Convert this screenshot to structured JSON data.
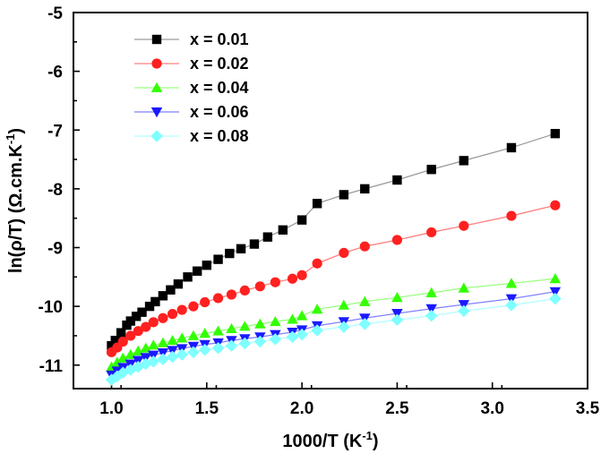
{
  "chart_data": {
    "type": "line",
    "title": "",
    "xlabel": "1000/T (K",
    "xlabel_sup": "-1",
    "xlabel_end": ")",
    "ylabel": "ln(ρ/T) (Ω.cm.K",
    "ylabel_sup": "-1",
    "ylabel_end": ")",
    "xlim": [
      0.8,
      3.5
    ],
    "ylim": [
      -11.4,
      -5.0
    ],
    "xticks": [
      1.0,
      1.5,
      2.0,
      2.5,
      3.0,
      3.5
    ],
    "xtick_labels": [
      "1.0",
      "1.5",
      "2.0",
      "2.5",
      "3.0",
      "3.5"
    ],
    "yticks": [
      -11,
      -10,
      -9,
      -8,
      -7,
      -6,
      -5
    ],
    "ytick_labels": [
      "-11",
      "-10",
      "-9",
      "-8",
      "-7",
      "-6",
      "-5"
    ],
    "legend_position": "top-left",
    "series": [
      {
        "name": "x = 0.01",
        "marker": "square",
        "marker_color": "#000000",
        "line_color": "#9a9a9a",
        "x": [
          1.0,
          1.02,
          1.05,
          1.08,
          1.1,
          1.13,
          1.16,
          1.2,
          1.23,
          1.27,
          1.31,
          1.35,
          1.4,
          1.45,
          1.5,
          1.56,
          1.62,
          1.68,
          1.75,
          1.82,
          1.9,
          2.0,
          2.08,
          2.22,
          2.33,
          2.5,
          2.68,
          2.85,
          3.1,
          3.33
        ],
        "y": [
          -10.67,
          -10.58,
          -10.45,
          -10.32,
          -10.25,
          -10.17,
          -10.1,
          -10.0,
          -9.92,
          -9.82,
          -9.72,
          -9.62,
          -9.5,
          -9.4,
          -9.3,
          -9.2,
          -9.1,
          -9.02,
          -8.94,
          -8.82,
          -8.7,
          -8.53,
          -8.25,
          -8.1,
          -8.0,
          -7.85,
          -7.67,
          -7.52,
          -7.3,
          -7.06
        ]
      },
      {
        "name": "x = 0.02",
        "marker": "circle",
        "marker_color": "#ff2020",
        "line_color": "#ff8080",
        "x": [
          1.0,
          1.03,
          1.06,
          1.1,
          1.14,
          1.18,
          1.22,
          1.27,
          1.32,
          1.37,
          1.43,
          1.49,
          1.56,
          1.63,
          1.7,
          1.78,
          1.86,
          1.95,
          2.0,
          2.08,
          2.22,
          2.33,
          2.5,
          2.68,
          2.85,
          3.1,
          3.33
        ],
        "y": [
          -10.78,
          -10.7,
          -10.6,
          -10.5,
          -10.42,
          -10.35,
          -10.27,
          -10.2,
          -10.13,
          -10.06,
          -10.0,
          -9.93,
          -9.86,
          -9.8,
          -9.73,
          -9.66,
          -9.59,
          -9.53,
          -9.47,
          -9.27,
          -9.09,
          -8.98,
          -8.87,
          -8.74,
          -8.63,
          -8.46,
          -8.28
        ]
      },
      {
        "name": "x = 0.04",
        "marker": "triangle-up",
        "marker_color": "#33ff00",
        "line_color": "#9aff80",
        "x": [
          1.0,
          1.03,
          1.06,
          1.1,
          1.14,
          1.18,
          1.22,
          1.27,
          1.32,
          1.37,
          1.43,
          1.49,
          1.56,
          1.63,
          1.7,
          1.78,
          1.86,
          1.95,
          2.0,
          2.08,
          2.22,
          2.33,
          2.5,
          2.68,
          2.85,
          3.1,
          3.33
        ],
        "y": [
          -11.03,
          -10.95,
          -10.88,
          -10.82,
          -10.76,
          -10.71,
          -10.66,
          -10.62,
          -10.58,
          -10.54,
          -10.5,
          -10.46,
          -10.42,
          -10.38,
          -10.34,
          -10.3,
          -10.26,
          -10.22,
          -10.16,
          -10.05,
          -9.98,
          -9.92,
          -9.85,
          -9.77,
          -9.69,
          -9.61,
          -9.53
        ]
      },
      {
        "name": "x = 0.06",
        "marker": "triangle-down",
        "marker_color": "#1a1aff",
        "line_color": "#8080ff",
        "x": [
          1.0,
          1.03,
          1.06,
          1.1,
          1.14,
          1.18,
          1.22,
          1.27,
          1.32,
          1.37,
          1.43,
          1.49,
          1.56,
          1.63,
          1.7,
          1.78,
          1.86,
          1.95,
          2.0,
          2.08,
          2.22,
          2.33,
          2.5,
          2.68,
          2.85,
          3.1,
          3.33
        ],
        "y": [
          -11.17,
          -11.1,
          -11.04,
          -10.98,
          -10.92,
          -10.87,
          -10.83,
          -10.79,
          -10.75,
          -10.72,
          -10.68,
          -10.65,
          -10.62,
          -10.58,
          -10.55,
          -10.52,
          -10.48,
          -10.44,
          -10.4,
          -10.33,
          -10.26,
          -10.2,
          -10.12,
          -10.04,
          -9.97,
          -9.87,
          -9.75
        ]
      },
      {
        "name": "x = 0.08",
        "marker": "diamond",
        "marker_color": "#7fffff",
        "line_color": "#b0ffff",
        "x": [
          1.0,
          1.03,
          1.06,
          1.1,
          1.14,
          1.18,
          1.22,
          1.27,
          1.32,
          1.37,
          1.43,
          1.49,
          1.56,
          1.63,
          1.7,
          1.78,
          1.86,
          1.95,
          2.0,
          2.08,
          2.22,
          2.33,
          2.5,
          2.68,
          2.85,
          3.1,
          3.33
        ],
        "y": [
          -11.25,
          -11.19,
          -11.13,
          -11.08,
          -11.03,
          -10.98,
          -10.94,
          -10.9,
          -10.86,
          -10.82,
          -10.78,
          -10.74,
          -10.71,
          -10.67,
          -10.63,
          -10.6,
          -10.56,
          -10.52,
          -10.48,
          -10.41,
          -10.35,
          -10.3,
          -10.23,
          -10.16,
          -10.08,
          -9.98,
          -9.87
        ]
      }
    ]
  }
}
